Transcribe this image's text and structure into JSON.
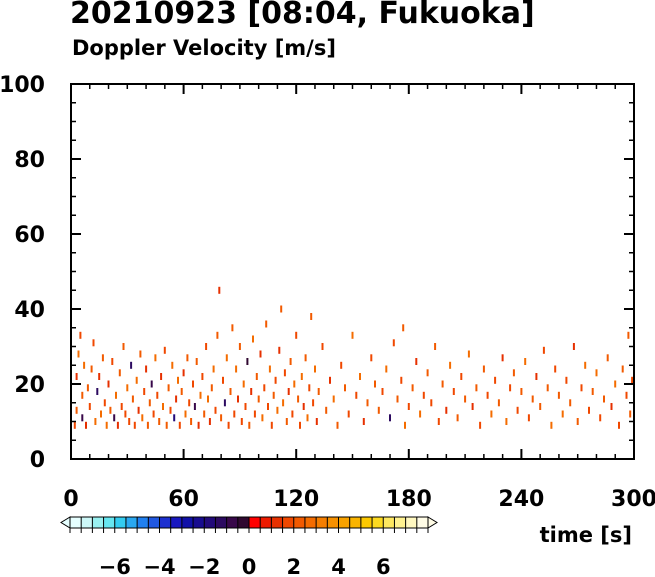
{
  "header": {
    "title": "20210923 [08:04, Fukuoka]",
    "subtitle": "Doppler Velocity [m/s]"
  },
  "chart_data": {
    "type": "scatter",
    "title": "20210923 [08:04, Fukuoka]",
    "subtitle": "Doppler Velocity [m/s]",
    "xlabel": "time [s]",
    "ylabel": "",
    "xlim": [
      0,
      300
    ],
    "ylim": [
      0,
      100
    ],
    "x_ticks": [
      0,
      60,
      120,
      180,
      240,
      300
    ],
    "y_ticks": [
      0,
      20,
      40,
      60,
      80,
      100
    ],
    "grid": false,
    "colorbar": {
      "label": "Doppler Velocity [m/s]",
      "range": [
        -8,
        8
      ],
      "ticks": [
        -6,
        -4,
        -2,
        0,
        2,
        4,
        6
      ],
      "colors": [
        "#e6ffff",
        "#ccf7f7",
        "#99f0f0",
        "#66e6f0",
        "#33ccf0",
        "#2aa8f0",
        "#2080f0",
        "#2058e0",
        "#1c30d0",
        "#1818c0",
        "#1010a8",
        "#180c90",
        "#220a7a",
        "#2c0a60",
        "#38084a",
        "#300830",
        "#ff0000",
        "#ee1a00",
        "#e63000",
        "#f04800",
        "#f25a00",
        "#f46c00",
        "#f57e00",
        "#f69000",
        "#f8a200",
        "#fab400",
        "#fcc800",
        "#fdda20",
        "#fee860",
        "#fff290",
        "#fff8c0",
        "#fffce6"
      ]
    },
    "series": [
      {
        "dominant_velocity_range": [
          0,
          3
        ],
        "points": [
          [
            2,
            9,
            1.5
          ],
          [
            3,
            13,
            2.2
          ],
          [
            3,
            22,
            1.2
          ],
          [
            4,
            28,
            2.6
          ],
          [
            5,
            33,
            1.8
          ],
          [
            6,
            11,
            -0.8
          ],
          [
            6,
            17,
            2.0
          ],
          [
            7,
            25,
            2.8
          ],
          [
            8,
            9,
            1.1
          ],
          [
            9,
            19,
            2.4
          ],
          [
            10,
            14,
            1.6
          ],
          [
            11,
            24,
            2.1
          ],
          [
            12,
            31,
            1.9
          ],
          [
            13,
            10,
            2.7
          ],
          [
            14,
            18,
            -1.5
          ],
          [
            15,
            22,
            1.3
          ],
          [
            16,
            12,
            2.5
          ],
          [
            17,
            27,
            2.0
          ],
          [
            18,
            15,
            1.7
          ],
          [
            19,
            9,
            2.9
          ],
          [
            20,
            20,
            1.4
          ],
          [
            21,
            13,
            2.3
          ],
          [
            22,
            26,
            1.8
          ],
          [
            23,
            11,
            -0.6
          ],
          [
            24,
            17,
            2.6
          ],
          [
            25,
            9,
            1.2
          ],
          [
            26,
            23,
            2.1
          ],
          [
            27,
            14,
            1.9
          ],
          [
            28,
            30,
            2.4
          ],
          [
            29,
            12,
            1.6
          ],
          [
            30,
            19,
            2.8
          ],
          [
            31,
            10,
            1.5
          ],
          [
            32,
            25,
            -1.2
          ],
          [
            33,
            16,
            2.2
          ],
          [
            34,
            9,
            1.7
          ],
          [
            35,
            21,
            2.5
          ],
          [
            36,
            13,
            1.3
          ],
          [
            37,
            28,
            2.0
          ],
          [
            38,
            11,
            2.7
          ],
          [
            39,
            18,
            1.8
          ],
          [
            40,
            24,
            1.4
          ],
          [
            41,
            9,
            2.3
          ],
          [
            42,
            15,
            2.1
          ],
          [
            43,
            20,
            -0.9
          ],
          [
            44,
            12,
            1.9
          ],
          [
            45,
            27,
            2.6
          ],
          [
            46,
            17,
            1.5
          ],
          [
            47,
            10,
            2.4
          ],
          [
            48,
            22,
            1.2
          ],
          [
            49,
            14,
            2.8
          ],
          [
            50,
            29,
            1.6
          ],
          [
            51,
            9,
            2.0
          ],
          [
            52,
            19,
            2.2
          ],
          [
            53,
            13,
            1.7
          ],
          [
            54,
            25,
            2.5
          ],
          [
            55,
            11,
            -1.8
          ],
          [
            56,
            16,
            1.3
          ],
          [
            57,
            21,
            2.9
          ],
          [
            58,
            9,
            1.8
          ],
          [
            59,
            18,
            2.1
          ],
          [
            60,
            23,
            1.4
          ],
          [
            61,
            12,
            2.6
          ],
          [
            62,
            27,
            2.0
          ],
          [
            63,
            15,
            1.5
          ],
          [
            64,
            10,
            2.3
          ],
          [
            65,
            20,
            1.9
          ],
          [
            66,
            14,
            -0.7
          ],
          [
            67,
            26,
            2.4
          ],
          [
            68,
            9,
            1.2
          ],
          [
            69,
            17,
            2.7
          ],
          [
            70,
            22,
            1.6
          ],
          [
            71,
            12,
            2.2
          ],
          [
            72,
            30,
            1.8
          ],
          [
            73,
            16,
            2.5
          ],
          [
            74,
            10,
            1.3
          ],
          [
            75,
            19,
            2.0
          ],
          [
            76,
            24,
            2.8
          ],
          [
            77,
            13,
            1.7
          ],
          [
            78,
            33,
            2.1
          ],
          [
            79,
            45,
            1.4
          ],
          [
            80,
            11,
            2.4
          ],
          [
            81,
            21,
            1.9
          ],
          [
            82,
            15,
            -1.1
          ],
          [
            83,
            27,
            2.6
          ],
          [
            84,
            9,
            1.5
          ],
          [
            85,
            18,
            2.3
          ],
          [
            86,
            35,
            2.0
          ],
          [
            87,
            12,
            1.8
          ],
          [
            88,
            24,
            2.7
          ],
          [
            89,
            16,
            1.2
          ],
          [
            90,
            30,
            2.2
          ],
          [
            91,
            10,
            1.6
          ],
          [
            92,
            20,
            2.5
          ],
          [
            93,
            14,
            1.9
          ],
          [
            94,
            26,
            -0.5
          ],
          [
            95,
            9,
            2.1
          ],
          [
            96,
            18,
            1.4
          ],
          [
            97,
            32,
            2.8
          ],
          [
            98,
            12,
            1.7
          ],
          [
            99,
            22,
            2.4
          ],
          [
            100,
            16,
            2.0
          ],
          [
            101,
            28,
            1.3
          ],
          [
            102,
            11,
            2.6
          ],
          [
            103,
            19,
            1.8
          ],
          [
            104,
            36,
            2.2
          ],
          [
            105,
            14,
            1.5
          ],
          [
            106,
            24,
            2.9
          ],
          [
            107,
            9,
            1.9
          ],
          [
            108,
            17,
            2.3
          ],
          [
            109,
            21,
            1.6
          ],
          [
            110,
            13,
            2.5
          ],
          [
            111,
            29,
            1.2
          ],
          [
            112,
            40,
            2.0
          ],
          [
            113,
            15,
            2.7
          ],
          [
            114,
            23,
            1.7
          ],
          [
            115,
            10,
            2.1
          ],
          [
            116,
            18,
            1.4
          ],
          [
            117,
            26,
            2.4
          ],
          [
            118,
            12,
            1.9
          ],
          [
            119,
            20,
            2.6
          ],
          [
            120,
            33,
            1.5
          ],
          [
            121,
            16,
            2.2
          ],
          [
            122,
            9,
            1.8
          ],
          [
            123,
            22,
            2.8
          ],
          [
            124,
            14,
            1.3
          ],
          [
            125,
            27,
            2.0
          ],
          [
            126,
            11,
            2.5
          ],
          [
            127,
            19,
            1.6
          ],
          [
            128,
            38,
            2.3
          ],
          [
            129,
            15,
            1.9
          ],
          [
            130,
            24,
            2.7
          ],
          [
            131,
            10,
            1.4
          ],
          [
            132,
            18,
            2.1
          ],
          [
            134,
            30,
            1.7
          ],
          [
            136,
            13,
            2.4
          ],
          [
            138,
            21,
            1.2
          ],
          [
            140,
            16,
            2.6
          ],
          [
            142,
            9,
            2.0
          ],
          [
            144,
            25,
            1.8
          ],
          [
            146,
            19,
            2.2
          ],
          [
            148,
            12,
            1.5
          ],
          [
            150,
            33,
            2.5
          ],
          [
            152,
            17,
            1.9
          ],
          [
            154,
            22,
            2.8
          ],
          [
            156,
            10,
            1.3
          ],
          [
            158,
            15,
            2.1
          ],
          [
            160,
            27,
            1.6
          ],
          [
            162,
            20,
            2.4
          ],
          [
            164,
            13,
            2.0
          ],
          [
            166,
            18,
            1.7
          ],
          [
            168,
            24,
            2.6
          ],
          [
            170,
            11,
            -1.4
          ],
          [
            172,
            31,
            1.8
          ],
          [
            174,
            16,
            2.3
          ],
          [
            176,
            21,
            1.5
          ],
          [
            177,
            35,
            2.2
          ],
          [
            178,
            9,
            2.7
          ],
          [
            180,
            14,
            1.9
          ],
          [
            182,
            19,
            2.0
          ],
          [
            184,
            26,
            1.4
          ],
          [
            186,
            12,
            2.5
          ],
          [
            188,
            17,
            1.7
          ],
          [
            190,
            23,
            2.2
          ],
          [
            192,
            15,
            1.6
          ],
          [
            194,
            30,
            2.4
          ],
          [
            196,
            10,
            1.9
          ],
          [
            198,
            20,
            2.1
          ],
          [
            200,
            13,
            1.3
          ],
          [
            202,
            25,
            2.6
          ],
          [
            204,
            18,
            1.8
          ],
          [
            206,
            11,
            2.3
          ],
          [
            208,
            22,
            1.5
          ],
          [
            210,
            16,
            2.0
          ],
          [
            212,
            28,
            2.7
          ],
          [
            214,
            14,
            1.2
          ],
          [
            216,
            19,
            2.4
          ],
          [
            218,
            9,
            1.9
          ],
          [
            220,
            24,
            2.2
          ],
          [
            222,
            17,
            1.6
          ],
          [
            224,
            12,
            2.5
          ],
          [
            226,
            21,
            1.7
          ],
          [
            228,
            15,
            2.1
          ],
          [
            230,
            27,
            1.4
          ],
          [
            232,
            10,
            2.8
          ],
          [
            234,
            19,
            1.8
          ],
          [
            236,
            23,
            2.3
          ],
          [
            238,
            13,
            1.5
          ],
          [
            240,
            18,
            2.0
          ],
          [
            242,
            26,
            2.6
          ],
          [
            244,
            11,
            1.9
          ],
          [
            246,
            16,
            2.2
          ],
          [
            248,
            22,
            1.3
          ],
          [
            250,
            14,
            2.4
          ],
          [
            252,
            29,
            1.7
          ],
          [
            254,
            19,
            2.1
          ],
          [
            256,
            9,
            2.5
          ],
          [
            258,
            24,
            1.6
          ],
          [
            260,
            17,
            2.0
          ],
          [
            262,
            12,
            2.7
          ],
          [
            264,
            21,
            1.8
          ],
          [
            266,
            15,
            2.3
          ],
          [
            268,
            30,
            1.4
          ],
          [
            270,
            10,
            2.2
          ],
          [
            272,
            19,
            1.9
          ],
          [
            274,
            25,
            2.6
          ],
          [
            276,
            13,
            1.5
          ],
          [
            278,
            18,
            2.1
          ],
          [
            280,
            23,
            2.8
          ],
          [
            282,
            11,
            1.7
          ],
          [
            284,
            16,
            2.4
          ],
          [
            286,
            27,
            2.0
          ],
          [
            288,
            14,
            1.3
          ],
          [
            290,
            20,
            2.5
          ],
          [
            292,
            9,
            1.8
          ],
          [
            294,
            24,
            2.2
          ],
          [
            296,
            17,
            1.6
          ],
          [
            297,
            33,
            2.0
          ],
          [
            298,
            12,
            2.4
          ],
          [
            299,
            21,
            1.9
          ]
        ]
      }
    ]
  }
}
